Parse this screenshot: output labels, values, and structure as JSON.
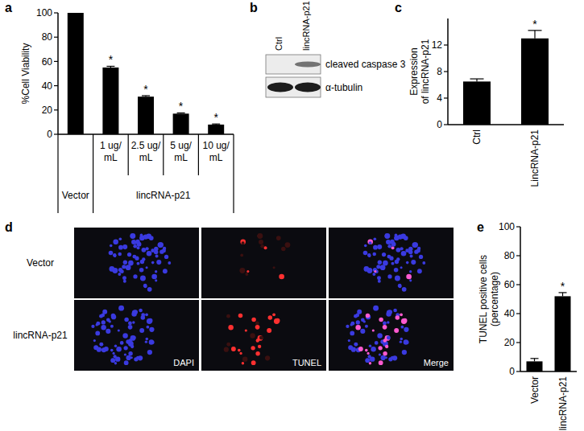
{
  "panel_labels": [
    "a",
    "b",
    "c",
    "d",
    "e"
  ],
  "chart_data": [
    {
      "type": "bar",
      "y_label": "%Cell Viability",
      "categories": [
        "Vector",
        "1 ug/ mL",
        "2.5 ug/ mL",
        "5 ug/ mL",
        "10 ug/ mL"
      ],
      "group_label": "lincRNA-p21",
      "values": [
        100,
        55,
        31,
        17,
        8
      ],
      "errors": [
        0.5,
        1,
        0.8,
        0.6,
        0.5
      ],
      "annotations": [
        null,
        "*",
        "*",
        "*",
        "*"
      ],
      "color": "#000000",
      "ylim": [
        0,
        100
      ],
      "yticks": [
        0,
        20,
        40,
        60,
        80,
        100
      ]
    },
    {
      "type": "bar",
      "y_label": [
        "Expression",
        "of lincRNA-p21"
      ],
      "categories": [
        "Ctrl",
        "LincRNA-p21"
      ],
      "values": [
        6.5,
        13
      ],
      "errors": [
        0.4,
        1.2
      ],
      "annotations": [
        null,
        "*"
      ],
      "color": "#000000",
      "ylim": [
        0,
        16
      ],
      "yticks": [
        0,
        4,
        8,
        12
      ]
    },
    {
      "type": "bar",
      "y_label": [
        "TUNEL positive cells",
        "(percentage)"
      ],
      "categories": [
        "Vector",
        "lincRNA-p21"
      ],
      "values": [
        7,
        52
      ],
      "errors": [
        2,
        2.5
      ],
      "annotations": [
        null,
        "*"
      ],
      "color": "#000000",
      "ylim": [
        0,
        100
      ],
      "yticks": [
        0,
        20,
        40,
        60,
        80,
        100
      ]
    }
  ],
  "blot": {
    "lanes": [
      "Ctrl",
      "lincRNA-p21"
    ],
    "bands": [
      "cleaved caspase 3",
      "α-tubulin"
    ]
  },
  "micrograph": {
    "rows": [
      "Vector",
      "lincRNA-p21"
    ],
    "channels": [
      "DAPI",
      "TUNEL",
      "Merge"
    ]
  }
}
